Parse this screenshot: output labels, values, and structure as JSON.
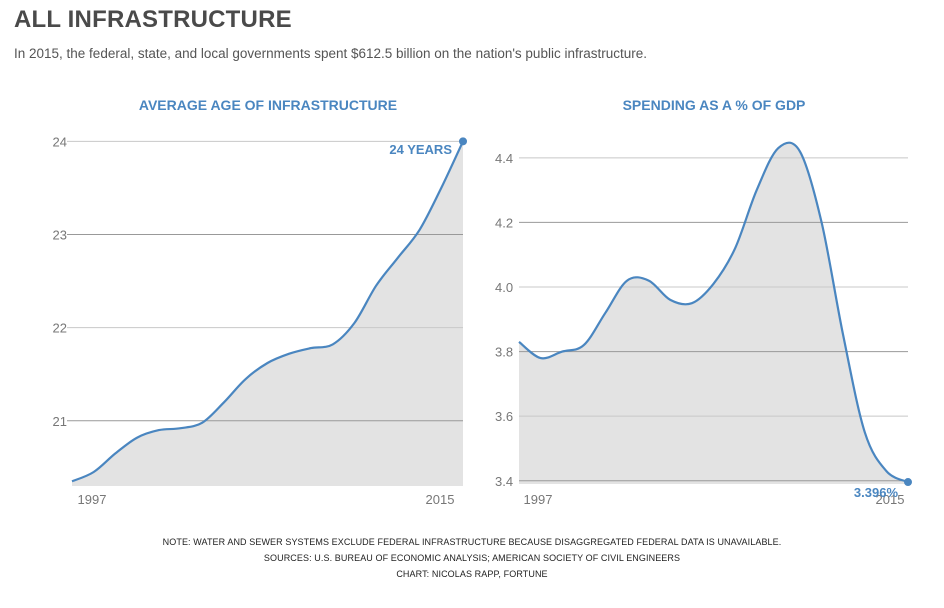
{
  "title": "ALL INFRASTRUCTURE",
  "subtitle": "In 2015, the federal, state, and local governments spent $612.5 billion on the nation's public infrastructure.",
  "colors": {
    "accent": "#4a86c0",
    "area": "#e3e3e3",
    "title": "#4a4a4a"
  },
  "chart_data": [
    {
      "type": "area",
      "title": "AVERAGE AGE OF INFRASTRUCTURE",
      "x": [
        1997,
        1998,
        1999,
        2000,
        2001,
        2002,
        2003,
        2004,
        2005,
        2006,
        2007,
        2008,
        2009,
        2010,
        2011,
        2012,
        2013,
        2014,
        2015
      ],
      "values": [
        20.35,
        20.45,
        20.65,
        20.82,
        20.9,
        20.92,
        20.98,
        21.2,
        21.45,
        21.62,
        21.72,
        21.78,
        21.82,
        22.05,
        22.45,
        22.75,
        23.05,
        23.5,
        24.0
      ],
      "xtick_labels": [
        "1997",
        "2015"
      ],
      "yticks": [
        21,
        22,
        23,
        24
      ],
      "ylim": [
        20.3,
        24.1
      ],
      "end_label": "24 YEARS"
    },
    {
      "type": "area",
      "title": "SPENDING AS A % OF GDP",
      "x": [
        1997,
        1998,
        1999,
        2000,
        2001,
        2002,
        2003,
        2004,
        2005,
        2006,
        2007,
        2008,
        2009,
        2010,
        2011,
        2012,
        2013,
        2014,
        2015
      ],
      "values": [
        3.83,
        3.78,
        3.8,
        3.82,
        3.92,
        4.02,
        4.02,
        3.96,
        3.95,
        4.01,
        4.12,
        4.3,
        4.43,
        4.42,
        4.2,
        3.85,
        3.55,
        3.43,
        3.396
      ],
      "xtick_labels": [
        "1997",
        "2015"
      ],
      "yticks": [
        3.4,
        3.6,
        3.8,
        4.0,
        4.2,
        4.4
      ],
      "ytick_labels": [
        "3.4",
        "3.6",
        "3.8",
        "4.0",
        "4.2",
        "4.4"
      ],
      "ylim": [
        3.39,
        4.48
      ],
      "end_label": "3.396%"
    }
  ],
  "notes": [
    "NOTE: WATER AND SEWER SYSTEMS EXCLUDE FEDERAL INFRASTRUCTURE BECAUSE DISAGGREGATED FEDERAL DATA IS UNAVAILABLE.",
    "SOURCES: U.S. BUREAU OF ECONOMIC ANALYSIS; AMERICAN SOCIETY OF CIVIL ENGINEERS",
    "CHART: NICOLAS RAPP, FORTUNE"
  ]
}
